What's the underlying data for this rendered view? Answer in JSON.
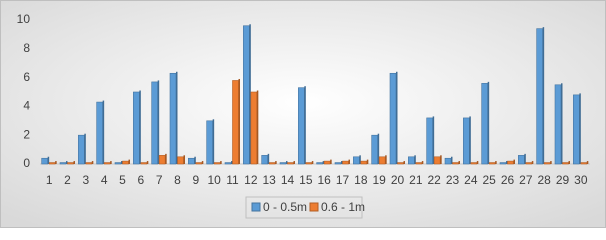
{
  "chart_data": {
    "type": "bar",
    "categories": [
      "1",
      "2",
      "3",
      "4",
      "5",
      "6",
      "7",
      "8",
      "9",
      "10",
      "11",
      "12",
      "13",
      "14",
      "15",
      "16",
      "17",
      "18",
      "19",
      "20",
      "21",
      "22",
      "23",
      "24",
      "25",
      "26",
      "27",
      "28",
      "29",
      "30"
    ],
    "series": [
      {
        "name": "0 - 0.5m",
        "color": "#5b9bd5",
        "values": [
          0.4,
          0.1,
          2.0,
          4.3,
          0.1,
          5.0,
          5.7,
          6.3,
          0.4,
          3.0,
          0.1,
          9.6,
          0.6,
          0.1,
          5.3,
          0.1,
          0.1,
          0.5,
          2.0,
          6.3,
          0.5,
          3.2,
          0.4,
          3.2,
          5.6,
          0.1,
          0.6,
          9.4,
          5.5,
          4.8
        ]
      },
      {
        "name": "0.6 - 1m",
        "color": "#ed7d31",
        "values": [
          0.1,
          0.1,
          0.1,
          0.1,
          0.2,
          0.1,
          0.6,
          0.5,
          0.1,
          0.1,
          5.8,
          5.0,
          0.1,
          0.1,
          0.1,
          0.2,
          0.2,
          0.2,
          0.5,
          0.1,
          0.1,
          0.5,
          0.1,
          0.1,
          0.1,
          0.2,
          0.1,
          0.1,
          0.1,
          0.1
        ]
      }
    ],
    "ylim": [
      0,
      10
    ],
    "yticks": [
      0,
      2,
      4,
      6,
      8,
      10
    ],
    "legend": "bottom"
  }
}
